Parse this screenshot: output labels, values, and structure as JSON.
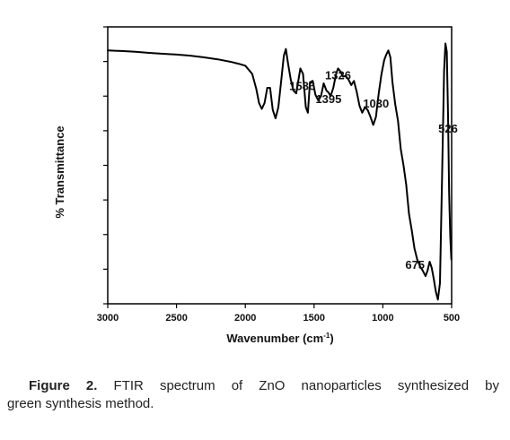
{
  "chart_data": {
    "type": "line",
    "title": "",
    "xlabel": "Wavenumber (cm",
    "xlabel_sup": "-1",
    "xlabel_close": ")",
    "ylabel": "% Transmittance",
    "xlim": [
      3000,
      500
    ],
    "x_reversed": true,
    "ylim": [
      0,
      100
    ],
    "y_tick_labels_shown": false,
    "y_ticks_count": 8,
    "grid": false,
    "x_ticks": [
      3000,
      2500,
      2000,
      1500,
      1000,
      500
    ],
    "x_tick_labels": [
      "3000",
      "2500",
      "2000",
      "1500",
      "1000",
      "500"
    ],
    "series": [
      {
        "color": "#000000",
        "x": [
          3000,
          2900,
          2800,
          2700,
          2600,
          2500,
          2400,
          2300,
          2200,
          2100,
          2050,
          2000,
          1950,
          1920,
          1900,
          1880,
          1860,
          1840,
          1820,
          1800,
          1780,
          1760,
          1740,
          1720,
          1705,
          1690,
          1670,
          1650,
          1630,
          1600,
          1580,
          1560,
          1545,
          1530,
          1510,
          1490,
          1470,
          1450,
          1430,
          1410,
          1395,
          1380,
          1360,
          1340,
          1326,
          1310,
          1290,
          1270,
          1250,
          1230,
          1210,
          1190,
          1170,
          1150,
          1130,
          1110,
          1090,
          1070,
          1050,
          1030,
          1010,
          990,
          975,
          960,
          945,
          930,
          910,
          890,
          870,
          850,
          830,
          810,
          790,
          770,
          750,
          730,
          710,
          690,
          675,
          660,
          645,
          630,
          615,
          600,
          585,
          570,
          555,
          545,
          535,
          526,
          518,
          510,
          502
        ],
        "y": [
          91.5,
          91.3,
          91,
          90.6,
          90.3,
          90,
          89.6,
          89,
          88.3,
          87.3,
          86.7,
          86,
          83,
          77.5,
          72.5,
          70.4,
          72.5,
          78,
          78,
          70,
          67,
          71,
          80,
          89.5,
          92,
          87,
          81,
          77,
          76,
          85,
          83,
          71,
          69,
          80,
          80.5,
          75.5,
          73.5,
          75,
          79.6,
          77,
          76.3,
          75,
          78,
          83,
          85,
          84,
          82,
          82.3,
          81,
          79,
          80.5,
          76.5,
          71.5,
          69,
          71,
          70,
          67.5,
          64.6,
          67.5,
          76,
          83,
          88,
          90,
          91.5,
          89,
          80,
          72,
          66,
          56,
          50,
          43,
          32.5,
          26.5,
          20,
          16,
          13.5,
          12,
          10,
          12,
          15.2,
          13,
          9,
          4.4,
          1.5,
          7.5,
          45,
          84,
          94,
          91,
          68,
          40,
          24,
          16
        ]
      }
    ],
    "annotations": [
      {
        "text": "1586",
        "x": 1586
      },
      {
        "text": "1395",
        "x": 1395
      },
      {
        "text": "1326",
        "x": 1326
      },
      {
        "text": "1030",
        "x": 1030
      },
      {
        "text": "675",
        "x": 675
      },
      {
        "text": "526",
        "x": 526
      }
    ]
  },
  "caption": {
    "label": "Figure 2.",
    "text_line1": "FTIR spectrum of ZnO nanoparticles synthesized by",
    "text_line2": "green synthesis method."
  }
}
